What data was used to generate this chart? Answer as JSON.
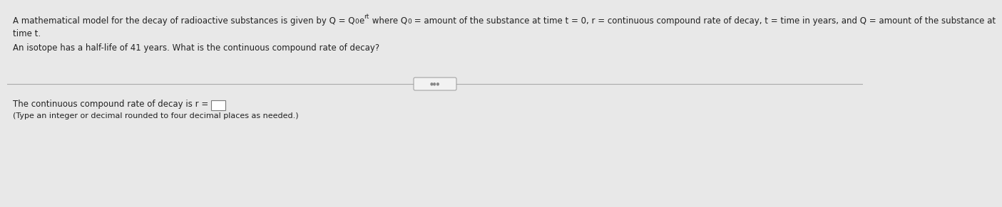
{
  "bg_color": "#e8e8e8",
  "panel_color": "#ffffff",
  "text_color": "#222222",
  "divider_color": "#aaaaaa",
  "font_size": 8.5,
  "font_size_small": 8.0,
  "font_size_super": 6.5,
  "line1a": "A mathematical model for the decay of radioactive substances is given by Q = Q",
  "line1b": "0",
  "line1c": "e",
  "line1d": "rt",
  "line1e": " where Q",
  "line1f": "0",
  "line1g": " = amount of the substance at time t = 0, r = continuous compound rate of decay, t = time in years, and Q = amount of the substance at",
  "line2": "time t.",
  "line3": "An isotope has a half-life of 41 years. What is the continuous compound rate of decay?",
  "line4a": "The continuous compound rate of decay is r = ",
  "line5": "(Type an integer or decimal rounded to four decimal places as needed.)"
}
